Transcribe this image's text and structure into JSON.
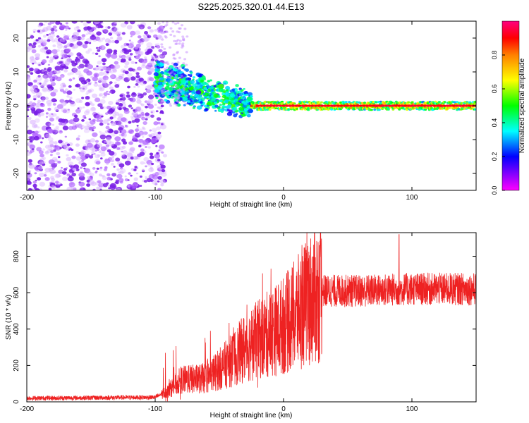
{
  "title": "S225.2025.320.01.44.E13",
  "chart_data": [
    {
      "type": "heatmap",
      "name": "spectrogram",
      "xlabel": "Height of straight line (km)",
      "ylabel": "Frequency (Hz)",
      "xlim": [
        -200,
        150
      ],
      "ylim": [
        -25,
        25
      ],
      "xticks": [
        -200,
        -100,
        0,
        100
      ],
      "yticks": [
        -20,
        -10,
        0,
        10,
        20
      ],
      "colorbar": {
        "label": "Normalized spectral amplitude",
        "ticks": [
          0.0,
          0.2,
          0.4,
          0.6,
          0.8
        ],
        "range": [
          0,
          1
        ],
        "colormap": [
          "#ff00ff",
          "#8000ff",
          "#0000ff",
          "#00ffff",
          "#00ff00",
          "#ffff00",
          "#ff8000",
          "#ff0000",
          "#ff0080"
        ]
      },
      "segments": [
        {
          "x": [
            -200,
            -92
          ],
          "freq_spread": 25,
          "amplitude": 0.15,
          "description_color": "#9b30ff"
        },
        {
          "x": [
            -100,
            -25
          ],
          "freq_center": [
            8,
            0
          ],
          "freq_spread": 6,
          "amplitude": 0.35
        },
        {
          "x": [
            -25,
            150
          ],
          "freq_center": 0,
          "freq_spread": 1.2,
          "amplitude": 0.85
        }
      ]
    },
    {
      "type": "line",
      "name": "snr",
      "xlabel": "Height of straight line (km)",
      "ylabel": "SNR (10 * v/v)",
      "xlim": [
        -200,
        150
      ],
      "ylim": [
        0,
        930
      ],
      "xticks": [
        -200,
        -100,
        0,
        100
      ],
      "yticks": [
        0,
        200,
        400,
        600,
        800
      ],
      "color": "#ee2222",
      "profile": [
        {
          "x": -200,
          "y": 20
        },
        {
          "x": -100,
          "y": 25
        },
        {
          "x": -90,
          "y": 60
        },
        {
          "x": -80,
          "y": 120
        },
        {
          "x": -60,
          "y": 130
        },
        {
          "x": -40,
          "y": 230
        },
        {
          "x": -30,
          "y": 300
        },
        {
          "x": -20,
          "y": 340
        },
        {
          "x": 0,
          "y": 420
        },
        {
          "x": 10,
          "y": 480
        },
        {
          "x": 20,
          "y": 560
        },
        {
          "x": 30,
          "y": 610
        },
        {
          "x": 60,
          "y": 610
        },
        {
          "x": 100,
          "y": 620
        },
        {
          "x": 150,
          "y": 620
        }
      ],
      "peak": {
        "x": 90,
        "y": 920
      }
    }
  ]
}
